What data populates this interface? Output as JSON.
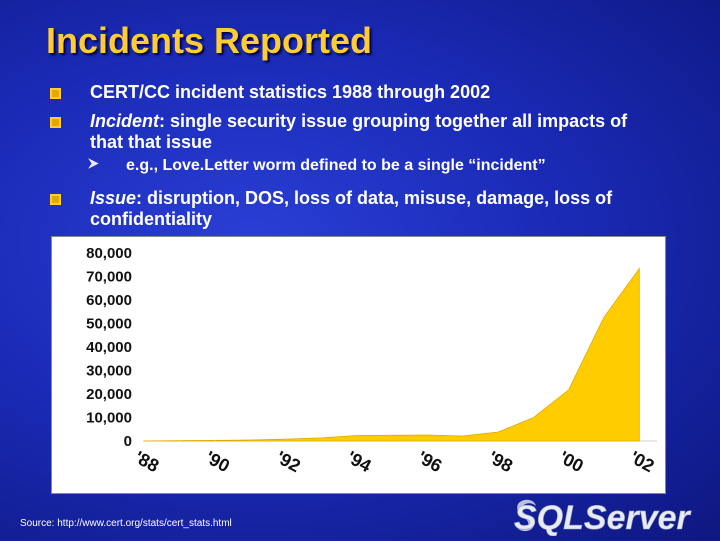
{
  "slide": {
    "title": "Incidents Reported",
    "bullets": {
      "b1": "CERT/CC incident statistics 1988 through 2002",
      "b2_term": "Incident",
      "b2_rest": ": single security issue grouping together all impacts of that that issue",
      "sub": "e.g., Love.Letter worm defined to be a single “incident”",
      "b3_term": "Issue",
      "b3_rest": ": disruption, DOS, loss of data, misuse, damage, loss of confidentiality"
    },
    "source": "Source: http://www.cert.org/stats/cert_stats.html",
    "logo_text": "SQLServer"
  },
  "colors": {
    "title": "#ffcc33",
    "background": "#1b2bb8",
    "area_fill": "#ffcc00",
    "bullet_marker": "#ffcc33"
  },
  "icons": {
    "bullet": "yellow-diamond-bullet",
    "sub_bullet": "arrow-bullet"
  },
  "chart_data": {
    "type": "area",
    "x": [
      1988,
      1989,
      1990,
      1991,
      1992,
      1993,
      1994,
      1995,
      1996,
      1997,
      1998,
      1999,
      2000,
      2001,
      2002
    ],
    "x_tick_labels": [
      "'88",
      "'90",
      "'92",
      "'94",
      "'96",
      "'98",
      "'00",
      "'02"
    ],
    "x_tick_years": [
      1988,
      1990,
      1992,
      1994,
      1996,
      1998,
      2000,
      2002
    ],
    "series": [
      {
        "values": [
          6,
          132,
          252,
          406,
          773,
          1334,
          2340,
          2412,
          2573,
          2134,
          3734,
          9859,
          21756,
          52658,
          73359
        ]
      }
    ],
    "y_tick_labels": [
      "0",
      "10,000",
      "20,000",
      "30,000",
      "40,000",
      "50,000",
      "60,000",
      "70,000",
      "80,000"
    ],
    "y_ticks": [
      0,
      10000,
      20000,
      30000,
      40000,
      50000,
      60000,
      70000,
      80000
    ],
    "ylim": [
      0,
      80000
    ],
    "xlim": [
      1988,
      2002.5
    ],
    "grid": false,
    "legend": "none"
  }
}
